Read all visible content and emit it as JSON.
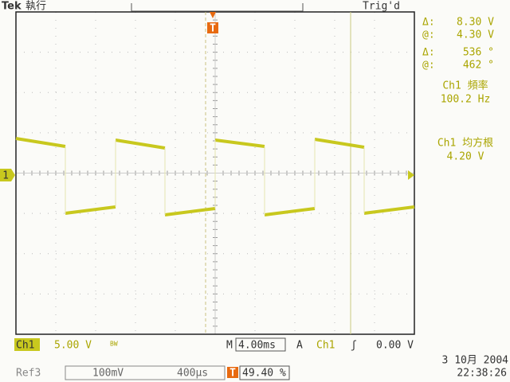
{
  "header": {
    "brand": "Tek",
    "run_state": "執行",
    "trigger_state": "Trig'd",
    "trigger_marker": "T",
    "channel_marker": "1"
  },
  "cursors": [
    {
      "label": "Δ:",
      "value": "8.30 V"
    },
    {
      "label": "@:",
      "value": "4.30 V"
    },
    {
      "label": "Δ:",
      "value": "536 °"
    },
    {
      "label": "@:",
      "value": "462 °"
    }
  ],
  "measurements": [
    {
      "name": "Ch1 頻率",
      "value": "100.2 Hz"
    },
    {
      "name": "Ch1 均方根",
      "value": "4.20 V"
    }
  ],
  "footer": {
    "channel": "Ch1",
    "volts_per_div": "5.00 V",
    "bandwidth": "BW",
    "time_label": "M",
    "time_per_div": "4.00ms",
    "trigger_label": "A",
    "trigger_source": "Ch1",
    "trigger_slope": "ʃ",
    "trigger_level": "0.00 V",
    "ref": "Ref3",
    "ref_volts": "100mV",
    "ref_time": "400μs",
    "trigger_marker": "T",
    "trigger_position": "49.40 %",
    "date": "3 10月 2004",
    "time": "22:38:26"
  }
}
